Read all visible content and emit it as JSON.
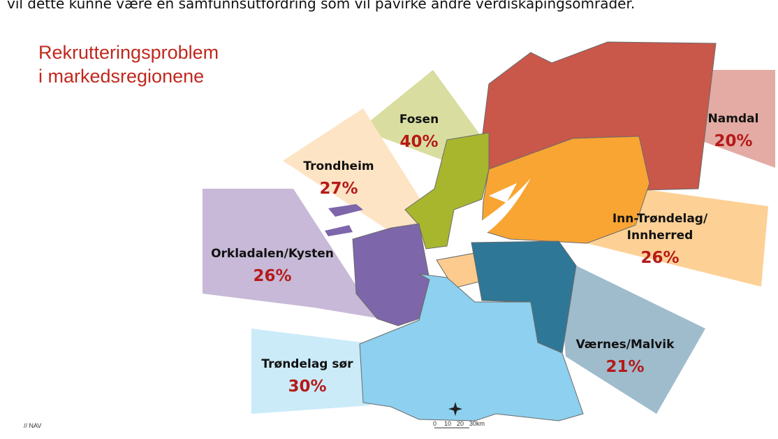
{
  "header": {
    "caption": "vil dette kunne være en samfunnsutfordring som vil påvirke andre verdiskapingsområder."
  },
  "title": [
    "Rekrutteringsproblem",
    "i markedsregionene"
  ],
  "regions": [
    {
      "lines": [
        "Fosen"
      ],
      "value": "40%"
    },
    {
      "lines": [
        "Trondheim"
      ],
      "value": "27%"
    },
    {
      "lines": [
        "Orkladalen/Kysten"
      ],
      "value": "26%"
    },
    {
      "lines": [
        "Trøndelag sør"
      ],
      "value": "30%"
    },
    {
      "lines": [
        "Værnes/Malvik"
      ],
      "value": "21%"
    },
    {
      "lines": [
        "Inn-Trøndelag/",
        "Innherred"
      ],
      "value": "26%"
    },
    {
      "lines": [
        "Namdal"
      ],
      "value": "20%"
    }
  ],
  "scale": [
    "0",
    "10",
    "20",
    "30km"
  ],
  "footer": "// NAV"
}
